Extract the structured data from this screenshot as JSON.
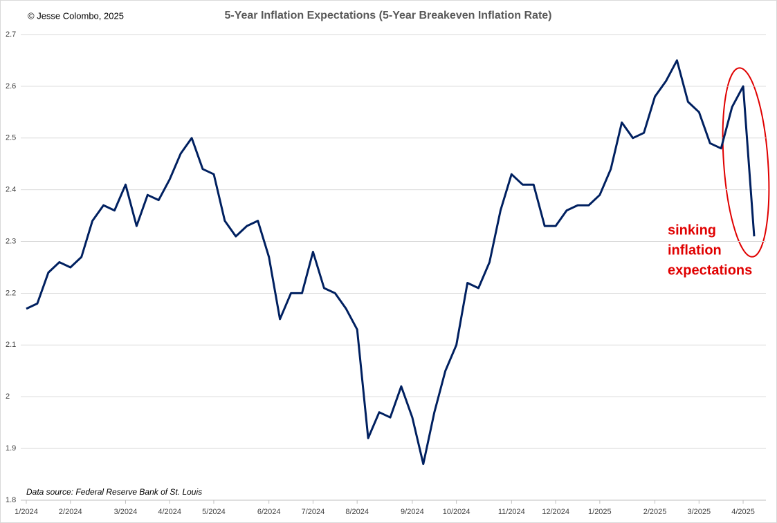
{
  "chart_data": {
    "type": "line",
    "title": "5-Year Inflation Expectations (5-Year Breakeven Inflation Rate)",
    "credit": "© Jesse Colombo, 2025",
    "source": "Data source: Federal Reserve Bank of St. Louis",
    "annotation": [
      "sinking",
      "inflation",
      "expectations"
    ],
    "categories": [
      "1/2024",
      null,
      null,
      null,
      "2/2024",
      null,
      null,
      null,
      null,
      "3/2024",
      null,
      null,
      null,
      "4/2024",
      null,
      null,
      null,
      "5/2024",
      null,
      null,
      null,
      null,
      "6/2024",
      null,
      null,
      null,
      "7/2024",
      null,
      null,
      null,
      "8/2024",
      null,
      null,
      null,
      null,
      "9/2024",
      null,
      null,
      null,
      "10/2024",
      null,
      null,
      null,
      null,
      "11/2024",
      null,
      null,
      null,
      "12/2024",
      null,
      null,
      null,
      "1/2025",
      null,
      null,
      null,
      null,
      "2/2025",
      null,
      null,
      null,
      "3/2025",
      null,
      null,
      null,
      "4/2025",
      null
    ],
    "series": [
      {
        "name": "5-Year Breakeven Inflation Rate",
        "color": "#002060",
        "values": [
          2.17,
          2.18,
          2.24,
          2.26,
          2.25,
          2.27,
          2.34,
          2.37,
          2.36,
          2.41,
          2.33,
          2.39,
          2.38,
          2.42,
          2.47,
          2.5,
          2.44,
          2.43,
          2.34,
          2.31,
          2.33,
          2.34,
          2.27,
          2.15,
          2.2,
          2.2,
          2.28,
          2.21,
          2.2,
          2.17,
          2.13,
          1.92,
          1.97,
          1.96,
          2.02,
          1.96,
          1.87,
          1.97,
          2.05,
          2.1,
          2.22,
          2.21,
          2.26,
          2.36,
          2.43,
          2.41,
          2.41,
          2.33,
          2.33,
          2.36,
          2.37,
          2.37,
          2.39,
          2.44,
          2.53,
          2.5,
          2.51,
          2.58,
          2.61,
          2.65,
          2.57,
          2.55,
          2.49,
          2.48,
          2.56,
          2.6,
          2.31
        ]
      }
    ],
    "ylim": [
      1.8,
      2.7
    ],
    "yticks": [
      1.8,
      1.9,
      2,
      2.1,
      2.2,
      2.3,
      2.4,
      2.5,
      2.6,
      2.7
    ],
    "grid": true
  }
}
